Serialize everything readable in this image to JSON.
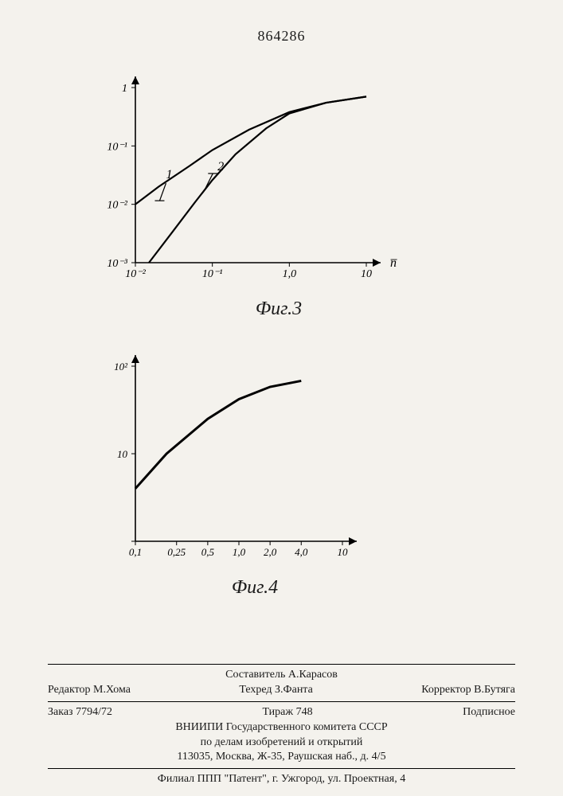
{
  "doc_number": "864286",
  "fig3": {
    "type": "line",
    "caption": "Фиг.3",
    "x_axis_label": "n̅",
    "x_scale": "log",
    "y_scale": "log",
    "x_ticks": [
      0.01,
      0.1,
      1.0,
      10
    ],
    "x_tick_labels": [
      "10⁻²",
      "10⁻¹",
      "1,0",
      "10"
    ],
    "y_ticks": [
      0.001,
      0.01,
      0.1,
      1
    ],
    "y_tick_labels": [
      "10⁻³",
      "10⁻²",
      "10⁻¹",
      "1"
    ],
    "series": [
      {
        "label": "1",
        "x": [
          0.01,
          0.02,
          0.05,
          0.1,
          0.3,
          1.0,
          3.0,
          10
        ],
        "y": [
          0.01,
          0.02,
          0.045,
          0.085,
          0.19,
          0.38,
          0.55,
          0.7
        ]
      },
      {
        "label": "2",
        "x": [
          0.015,
          0.03,
          0.06,
          0.1,
          0.2,
          0.5,
          1.0,
          3.0,
          10
        ],
        "y": [
          0.001,
          0.0033,
          0.011,
          0.026,
          0.072,
          0.2,
          0.36,
          0.55,
          0.7
        ]
      }
    ],
    "stroke_color": "#000000",
    "stroke_width": 2.2,
    "axis_color": "#000000",
    "tick_fontsize": 14,
    "leader_label_fontsize": 16
  },
  "fig4": {
    "type": "line",
    "caption": "Фиг.4",
    "x_scale": "log",
    "y_scale": "log",
    "x_ticks": [
      0.1,
      0.25,
      0.5,
      1.0,
      2.0,
      4.0,
      10
    ],
    "x_tick_labels": [
      "0,1",
      "0,25",
      "0,5",
      "1,0",
      "2,0",
      "4,0",
      "10"
    ],
    "y_ticks": [
      1,
      10,
      100
    ],
    "y_tick_labels": [
      "",
      "10",
      "10²"
    ],
    "series": [
      {
        "x": [
          0.1,
          0.2,
          0.5,
          1.0,
          2.0,
          4.0
        ],
        "y": [
          4,
          10,
          25,
          42,
          58,
          68
        ]
      }
    ],
    "stroke_color": "#000000",
    "stroke_width": 3,
    "axis_color": "#000000",
    "tick_fontsize": 13
  },
  "footer": {
    "compiler_label": "Составитель",
    "compiler": "А.Карасов",
    "editor_label": "Редактор",
    "editor": "М.Хома",
    "techred_label": "Техред",
    "techred": "З.Фанта",
    "corrector_label": "Корректор",
    "corrector": "В.Бутяга",
    "order_label": "Заказ",
    "order": "7794/72",
    "tirazh_label": "Тираж",
    "tirazh": "748",
    "podpisnoe": "Подписное",
    "org1": "ВНИИПИ Государственного комитета СССР",
    "org2": "по делам изобретений и открытий",
    "addr1": "113035, Москва, Ж-35, Раушская наб., д. 4/5",
    "branch": "Филиал ППП \"Патент\", г. Ужгород, ул. Проектная, 4"
  }
}
